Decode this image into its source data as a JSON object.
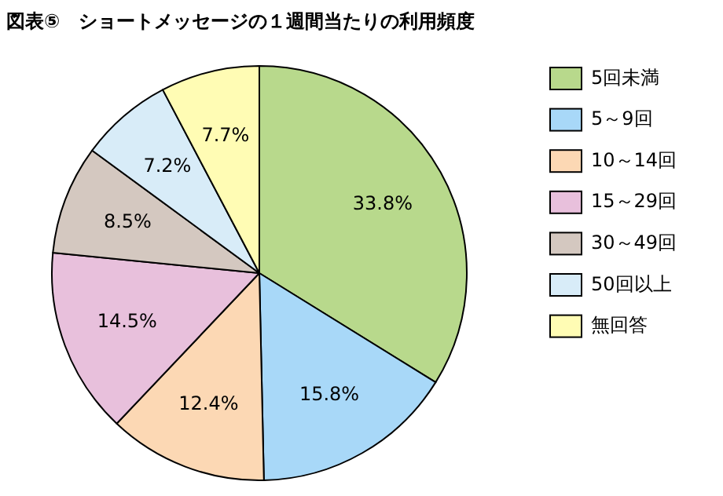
{
  "chart_data": {
    "type": "pie",
    "title": "図表⑤　ショートメッセージの１週間当たりの利用頻度",
    "categories": [
      "5回未満",
      "5～9回",
      "10～14回",
      "15～29回",
      "30～49回",
      "50回以上",
      "無回答"
    ],
    "values": [
      33.8,
      15.8,
      12.4,
      14.5,
      8.5,
      7.2,
      7.7
    ],
    "colors": [
      "#b8d98c",
      "#a8d8f8",
      "#fcd8b4",
      "#e8c0dc",
      "#d4c8c0",
      "#d8ecf8",
      "#fffcb4"
    ],
    "value_labels": [
      "33.8%",
      "15.8%",
      "12.4%",
      "14.5%",
      "8.5%",
      "7.2%",
      "7.7%"
    ],
    "legend": "right"
  }
}
